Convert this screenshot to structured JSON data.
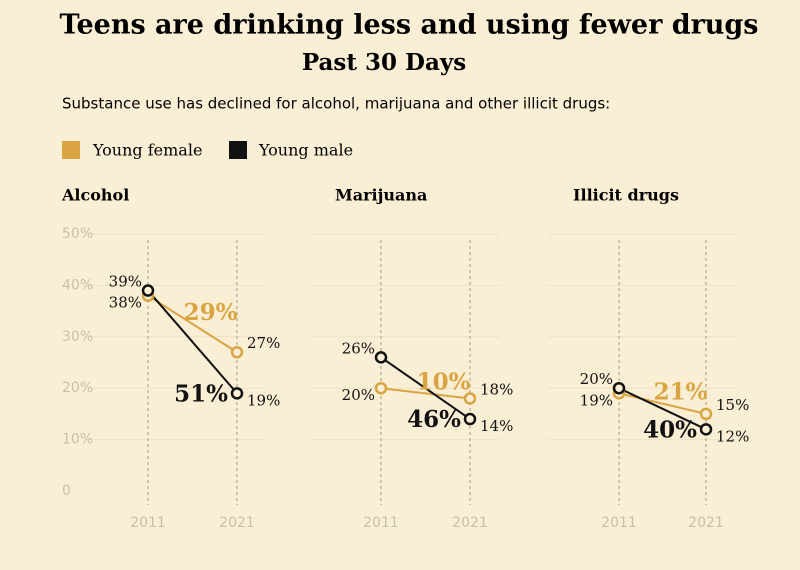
{
  "header": {
    "title": "Teens are drinking less and using fewer drugs",
    "subtitle": "Past 30 Days",
    "text": "Substance use has declined for alcohol, marijuana and other  illicit drugs:"
  },
  "chart_data": [
    {
      "type": "line",
      "title": "Alcohol",
      "categories": [
        "2011",
        "2021"
      ],
      "series": [
        {
          "name": "Young female",
          "color": "#d9a441",
          "values": [
            38,
            27
          ],
          "value_labels": [
            "38%",
            "27%"
          ],
          "change_label": "29%"
        },
        {
          "name": "Young male",
          "color": "#111111",
          "values": [
            39,
            19
          ],
          "value_labels": [
            "39%",
            "19%"
          ],
          "change_label": "51%"
        }
      ],
      "ylim": [
        0,
        50
      ],
      "yticks": [
        0,
        {
          "value": 10,
          "label": "10%"
        },
        {
          "value": 20,
          "label": "20%"
        },
        {
          "value": 30,
          "label": "30%"
        },
        {
          "value": 40,
          "label": "40%"
        },
        {
          "value": 50,
          "label": "50%"
        }
      ],
      "grid": true
    },
    {
      "type": "line",
      "title": "Marijuana",
      "categories": [
        "2011",
        "2021"
      ],
      "series": [
        {
          "name": "Young female",
          "color": "#d9a441",
          "values": [
            20,
            18
          ],
          "value_labels": [
            "20%",
            "18%"
          ],
          "change_label": "10%"
        },
        {
          "name": "Young male",
          "color": "#111111",
          "values": [
            26,
            14
          ],
          "value_labels": [
            "26%",
            "14%"
          ],
          "change_label": "46%"
        }
      ],
      "ylim": [
        0,
        50
      ],
      "yticks": [
        0,
        10,
        20,
        30,
        40,
        50
      ],
      "grid": true
    },
    {
      "type": "line",
      "title": "Illicit drugs",
      "categories": [
        "2011",
        "2021"
      ],
      "series": [
        {
          "name": "Young female",
          "color": "#d9a441",
          "values": [
            19,
            15
          ],
          "value_labels": [
            "19%",
            "15%"
          ],
          "change_label": "21%"
        },
        {
          "name": "Young male",
          "color": "#111111",
          "values": [
            20,
            12
          ],
          "value_labels": [
            "20%",
            "12%"
          ],
          "change_label": "40%"
        }
      ],
      "ylim": [
        0,
        50
      ],
      "yticks": [
        0,
        10,
        20,
        30,
        40,
        50
      ],
      "grid": true
    }
  ]
}
